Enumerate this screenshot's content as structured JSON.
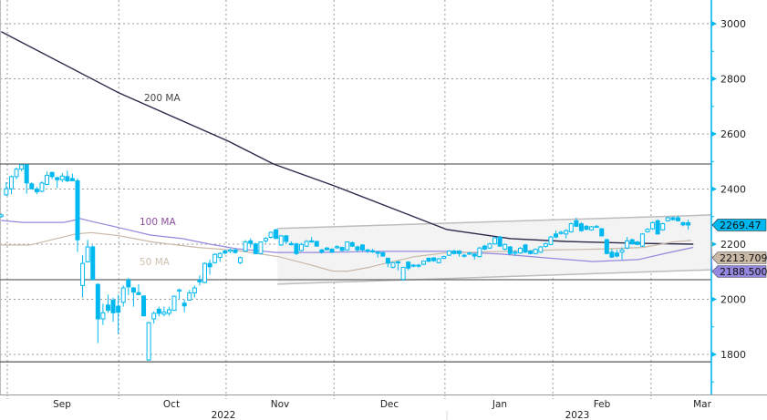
{
  "chart_data": {
    "type": "candlestick",
    "title": "",
    "xlabel": "",
    "ylabel": "",
    "ylim": [
      1660,
      3085
    ],
    "y_ticks": [
      1800,
      2000,
      2200,
      2400,
      2600,
      2800,
      3000
    ],
    "grid": true,
    "months": [
      "Sep",
      "Oct",
      "Nov",
      "Dec",
      "Jan",
      "Feb",
      "Mar"
    ],
    "years": [
      "2022",
      "2023"
    ],
    "colors": {
      "candle": "#00b8f0",
      "ma200": "#2a2a4a",
      "ma100": "#9488de",
      "ma50": "#c9b9a6",
      "channel_fill": "#f3f3f3",
      "channel_edge": "#bdbdbd",
      "level_line": "#666666",
      "axis": "#00b8f0"
    },
    "candles_ohlc": [
      [
        2300,
        2312,
        2296,
        2306
      ],
      [
        2379,
        2425,
        2375,
        2401
      ],
      [
        2401,
        2449,
        2381,
        2445
      ],
      [
        2445,
        2478,
        2436,
        2472
      ],
      [
        2472,
        2490,
        2465,
        2488
      ],
      [
        2488,
        2491,
        2383,
        2422
      ],
      [
        2419,
        2425,
        2398,
        2401
      ],
      [
        2400,
        2408,
        2381,
        2390
      ],
      [
        2392,
        2428,
        2388,
        2422
      ],
      [
        2417,
        2463,
        2414,
        2450
      ],
      [
        2460,
        2463,
        2436,
        2445
      ],
      [
        2441,
        2445,
        2403,
        2434
      ],
      [
        2434,
        2458,
        2425,
        2447
      ],
      [
        2445,
        2467,
        2425,
        2430
      ],
      [
        2438,
        2456,
        2428,
        2430
      ],
      [
        2430,
        2438,
        2171,
        2216
      ],
      [
        2050,
        2160,
        2006,
        2130
      ],
      [
        2136,
        2216,
        2133,
        2190
      ],
      [
        2190,
        2196,
        2070,
        2072
      ],
      [
        2054,
        2058,
        1841,
        1929
      ],
      [
        1929,
        1984,
        1907,
        1951
      ],
      [
        1979,
        2017,
        1951,
        1960
      ],
      [
        1997,
        2006,
        1918,
        1951
      ],
      [
        1975,
        2017,
        1874,
        1953
      ],
      [
        1989,
        2050,
        1973,
        2041
      ],
      [
        2070,
        2078,
        2015,
        2045
      ],
      [
        2041,
        2045,
        1973,
        2026
      ],
      [
        2024,
        2054,
        2015,
        2017
      ],
      [
        2012,
        2014,
        1938,
        1940
      ],
      [
        1780,
        1918,
        1777,
        1915
      ],
      [
        1929,
        1956,
        1912,
        1949
      ],
      [
        1964,
        1973,
        1938,
        1949
      ],
      [
        1946,
        1973,
        1938,
        1954
      ],
      [
        1949,
        1973,
        1940,
        1962
      ],
      [
        1960,
        2014,
        1958,
        2011
      ],
      [
        2030,
        2039,
        2000,
        2034
      ],
      [
        1986,
        2000,
        1953,
        1976
      ],
      [
        1997,
        2034,
        1995,
        2023
      ],
      [
        2023,
        2050,
        2006,
        2041
      ],
      [
        2070,
        2087,
        2050,
        2063
      ],
      [
        2061,
        2134,
        2058,
        2130
      ],
      [
        2130,
        2144,
        2089,
        2118
      ],
      [
        2133,
        2167,
        2130,
        2163
      ],
      [
        2152,
        2171,
        2136,
        2166
      ],
      [
        2175,
        2180,
        2163,
        2168
      ],
      [
        2174,
        2184,
        2168,
        2179
      ],
      [
        2179,
        2185,
        2165,
        2170
      ],
      [
        2133,
        2155,
        2127,
        2151
      ],
      [
        2175,
        2215,
        2172,
        2208
      ],
      [
        2212,
        2221,
        2188,
        2203
      ],
      [
        2201,
        2205,
        2163,
        2166
      ],
      [
        2166,
        2210,
        2163,
        2208
      ],
      [
        2212,
        2226,
        2205,
        2221
      ],
      [
        2225,
        2246,
        2220,
        2243
      ],
      [
        2252,
        2256,
        2218,
        2221
      ],
      [
        2197,
        2233,
        2194,
        2230
      ],
      [
        2230,
        2233,
        2200,
        2210
      ],
      [
        2202,
        2210,
        2195,
        2199
      ],
      [
        2201,
        2205,
        2160,
        2166
      ],
      [
        2177,
        2205,
        2174,
        2199
      ],
      [
        2193,
        2215,
        2190,
        2210
      ],
      [
        2212,
        2226,
        2205,
        2208
      ],
      [
        2210,
        2212,
        2191,
        2193
      ],
      [
        2179,
        2183,
        2166,
        2171
      ],
      [
        2186,
        2190,
        2177,
        2180
      ],
      [
        2182,
        2185,
        2168,
        2171
      ],
      [
        2188,
        2196,
        2183,
        2191
      ],
      [
        2188,
        2191,
        2174,
        2177
      ],
      [
        2179,
        2210,
        2176,
        2208
      ],
      [
        2205,
        2210,
        2190,
        2193
      ],
      [
        2190,
        2195,
        2172,
        2179
      ],
      [
        2197,
        2200,
        2174,
        2179
      ],
      [
        2179,
        2183,
        2168,
        2175
      ],
      [
        2176,
        2183,
        2168,
        2175
      ],
      [
        2171,
        2175,
        2151,
        2168
      ],
      [
        2169,
        2172,
        2154,
        2157
      ],
      [
        2149,
        2150,
        2116,
        2131
      ],
      [
        2116,
        2136,
        2112,
        2133
      ],
      [
        2136,
        2140,
        2105,
        2133
      ],
      [
        2072,
        2118,
        2068,
        2116
      ],
      [
        2135,
        2138,
        2105,
        2113
      ],
      [
        2124,
        2128,
        2116,
        2120
      ],
      [
        2124,
        2128,
        2115,
        2120
      ],
      [
        2127,
        2141,
        2124,
        2138
      ],
      [
        2149,
        2152,
        2135,
        2138
      ],
      [
        2150,
        2153,
        2136,
        2140
      ],
      [
        2133,
        2150,
        2130,
        2147
      ],
      [
        2149,
        2158,
        2146,
        2155
      ],
      [
        2160,
        2178,
        2157,
        2175
      ],
      [
        2175,
        2180,
        2163,
        2166
      ],
      [
        2175,
        2178,
        2155,
        2166
      ],
      [
        2160,
        2165,
        2152,
        2157
      ],
      [
        2164,
        2172,
        2160,
        2168
      ],
      [
        2164,
        2168,
        2144,
        2157
      ],
      [
        2155,
        2190,
        2152,
        2186
      ],
      [
        2193,
        2198,
        2178,
        2182
      ],
      [
        2186,
        2205,
        2183,
        2201
      ],
      [
        2201,
        2226,
        2198,
        2223
      ],
      [
        2226,
        2230,
        2190,
        2193
      ],
      [
        2182,
        2203,
        2178,
        2199
      ],
      [
        2190,
        2193,
        2160,
        2166
      ],
      [
        2170,
        2178,
        2157,
        2171
      ],
      [
        2168,
        2190,
        2165,
        2185
      ],
      [
        2197,
        2201,
        2168,
        2171
      ],
      [
        2175,
        2178,
        2163,
        2166
      ],
      [
        2166,
        2185,
        2163,
        2181
      ],
      [
        2171,
        2193,
        2168,
        2190
      ],
      [
        2192,
        2205,
        2188,
        2202
      ],
      [
        2199,
        2230,
        2196,
        2226
      ],
      [
        2237,
        2249,
        2222,
        2226
      ],
      [
        2240,
        2249,
        2235,
        2243
      ],
      [
        2237,
        2254,
        2221,
        2249
      ],
      [
        2245,
        2278,
        2242,
        2274
      ],
      [
        2285,
        2296,
        2262,
        2265
      ],
      [
        2274,
        2280,
        2245,
        2249
      ],
      [
        2265,
        2270,
        2250,
        2254
      ],
      [
        2252,
        2266,
        2249,
        2263
      ],
      [
        2263,
        2270,
        2260,
        2265
      ],
      [
        2256,
        2258,
        2228,
        2230
      ],
      [
        2216,
        2220,
        2163,
        2166
      ],
      [
        2171,
        2182,
        2150,
        2153
      ],
      [
        2168,
        2180,
        2152,
        2157
      ],
      [
        2171,
        2188,
        2144,
        2179
      ],
      [
        2186,
        2226,
        2182,
        2212
      ],
      [
        2216,
        2220,
        2198,
        2201
      ],
      [
        2208,
        2212,
        2196,
        2199
      ],
      [
        2193,
        2240,
        2190,
        2237
      ],
      [
        2245,
        2258,
        2242,
        2254
      ],
      [
        2256,
        2282,
        2252,
        2278
      ],
      [
        2285,
        2290,
        2235,
        2237
      ],
      [
        2252,
        2278,
        2249,
        2274
      ],
      [
        2285,
        2300,
        2282,
        2296
      ],
      [
        2296,
        2300,
        2285,
        2289
      ],
      [
        2296,
        2303,
        2282,
        2285
      ],
      [
        2278,
        2282,
        2265,
        2270
      ],
      [
        2278,
        2289,
        2252,
        2269.47
      ]
    ],
    "moving_averages": [
      {
        "name": "200 MA",
        "label": "200 MA",
        "points": [
          [
            0,
            2971
          ],
          [
            23.1,
            2749
          ],
          [
            44.6,
            2574
          ],
          [
            53.5,
            2491
          ],
          [
            65.4,
            2412
          ],
          [
            87.6,
            2253
          ],
          [
            100.1,
            2220
          ],
          [
            110.9,
            2210
          ],
          [
            125.2,
            2203
          ],
          [
            136,
            2200
          ]
        ]
      },
      {
        "name": "100 MA",
        "label": "100 MA",
        "last_value": "2188.5008",
        "points": [
          [
            0,
            2286
          ],
          [
            4.3,
            2279
          ],
          [
            12.3,
            2279
          ],
          [
            14.1,
            2286
          ],
          [
            15.5,
            2293
          ],
          [
            17.7,
            2283
          ],
          [
            23.1,
            2260
          ],
          [
            29.3,
            2233
          ],
          [
            35.6,
            2220
          ],
          [
            41,
            2200
          ],
          [
            46.4,
            2183
          ],
          [
            54.1,
            2170
          ],
          [
            62.5,
            2170
          ],
          [
            75,
            2174
          ],
          [
            87.6,
            2174
          ],
          [
            98.3,
            2164
          ],
          [
            107.3,
            2150
          ],
          [
            116.3,
            2137
          ],
          [
            125.2,
            2144
          ],
          [
            130.6,
            2167
          ],
          [
            136,
            2188.5
          ]
        ]
      },
      {
        "name": "50 MA",
        "label": "50 MA",
        "last_value": "2213.7095",
        "points": [
          [
            0,
            2197
          ],
          [
            5.7,
            2197
          ],
          [
            14.6,
            2237
          ],
          [
            17.7,
            2242
          ],
          [
            23.1,
            2231
          ],
          [
            29.7,
            2208
          ],
          [
            38.7,
            2188
          ],
          [
            46.4,
            2177
          ],
          [
            54.4,
            2155
          ],
          [
            60.3,
            2127
          ],
          [
            65.2,
            2102
          ],
          [
            68.2,
            2102
          ],
          [
            72.3,
            2116
          ],
          [
            75.4,
            2130
          ],
          [
            81.3,
            2155
          ],
          [
            87.2,
            2168
          ],
          [
            93,
            2171
          ],
          [
            108.2,
            2179
          ],
          [
            117.7,
            2182
          ],
          [
            126.1,
            2188
          ],
          [
            132,
            2208
          ],
          [
            135.6,
            2213.7
          ]
        ]
      }
    ],
    "last_close": "2269.47",
    "channel": {
      "upper": [
        [
          54.3,
          2257
        ],
        [
          139.5,
          2306
        ]
      ],
      "lower": [
        [
          54.3,
          2055
        ],
        [
          139.5,
          2107
        ]
      ]
    },
    "horizontal_levels": [
      2491,
      2071,
      1773
    ]
  }
}
